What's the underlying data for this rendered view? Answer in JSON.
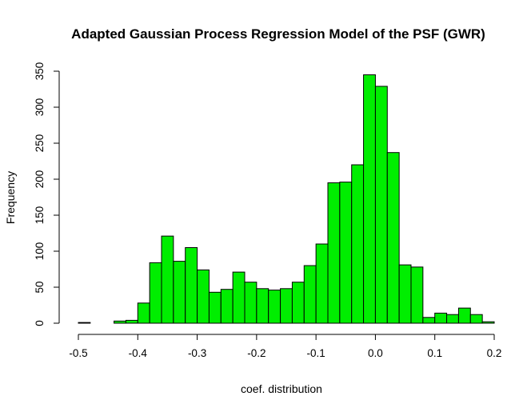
{
  "chart_data": {
    "type": "bar",
    "title": "Adapted Gaussian Process Regression Model of the PSF (GWR)",
    "xlabel": "coef. distribution",
    "ylabel": "Frequency",
    "bin_width": 0.02,
    "bin_start": -0.5,
    "values": [
      1,
      0,
      0,
      3,
      4,
      28,
      84,
      121,
      86,
      105,
      74,
      43,
      47,
      71,
      57,
      48,
      46,
      48,
      57,
      80,
      110,
      195,
      196,
      220,
      345,
      329,
      237,
      81,
      78,
      8,
      14,
      12,
      21,
      12,
      2
    ],
    "xlim": [
      -0.5,
      0.2
    ],
    "ylim": [
      0,
      350
    ],
    "x_ticks": [
      "-0.5",
      "-0.4",
      "-0.3",
      "-0.2",
      "-0.1",
      "0.0",
      "0.1",
      "0.2"
    ],
    "y_ticks": [
      "0",
      "50",
      "100",
      "150",
      "200",
      "250",
      "300",
      "350"
    ],
    "bar_color": "#00ee00",
    "grid": false
  }
}
